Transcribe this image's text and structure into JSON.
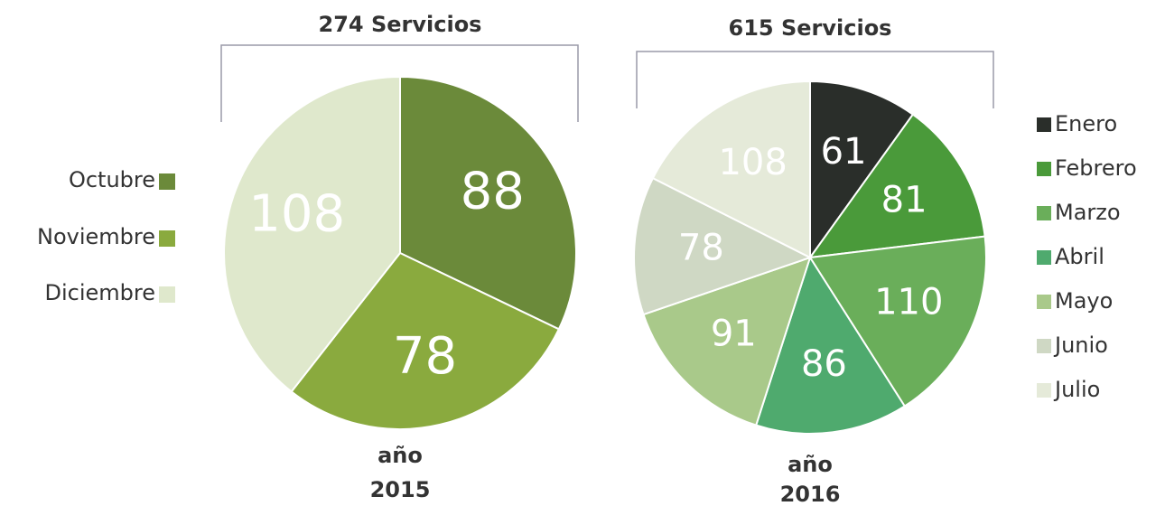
{
  "chart_data": [
    {
      "type": "pie",
      "title": "274 Servicios",
      "caption": [
        "año",
        "2015"
      ],
      "legend": "left",
      "categories": [
        "Octubre",
        "Noviembre",
        "Diciembre"
      ],
      "values": [
        88,
        78,
        108
      ],
      "colors": [
        "#6b8a3a",
        "#8aaa3e",
        "#dfe8cc"
      ]
    },
    {
      "type": "pie",
      "title": "615 Servicios",
      "caption": [
        "año",
        "2016"
      ],
      "legend": "right",
      "categories": [
        "Enero",
        "Febrero",
        "Marzo",
        "Abril",
        "Mayo",
        "Junio",
        "Julio"
      ],
      "values": [
        61,
        81,
        110,
        86,
        91,
        78,
        108
      ],
      "colors": [
        "#2a2e2a",
        "#4a9a3a",
        "#6aae5a",
        "#4faa6e",
        "#a9c98a",
        "#cfd8c4",
        "#e5ead9"
      ]
    }
  ]
}
